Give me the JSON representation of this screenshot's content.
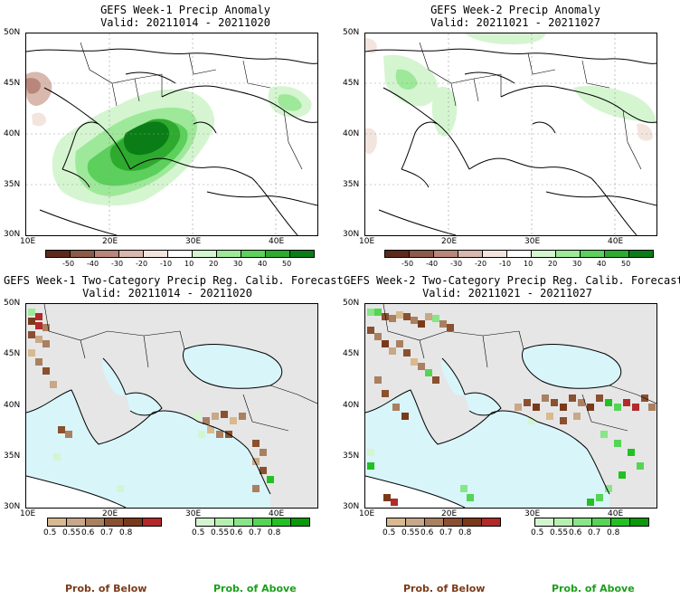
{
  "panels": [
    {
      "id": "p1",
      "title": "GEFS Week-1 Precip Anomaly",
      "valid": "Valid: 20211014 - 20211020"
    },
    {
      "id": "p2",
      "title": "GEFS Week-2 Precip Anomaly",
      "valid": "Valid: 20211021 - 20211027"
    },
    {
      "id": "p3",
      "title": "GEFS Week-1 Two-Category Precip Reg. Calib. Forecast",
      "valid": "Valid: 20211014 - 20211020"
    },
    {
      "id": "p4",
      "title": "GEFS Week-2 Two-Category Precip Reg. Calib. Forecast",
      "valid": "Valid: 20211021 - 20211027"
    }
  ],
  "axes": {
    "lat_labels": [
      "50N",
      "45N",
      "40N",
      "35N",
      "30N"
    ],
    "lon_labels": [
      "10E",
      "20E",
      "30E",
      "40E"
    ]
  },
  "anomaly_colorbar": {
    "labels": [
      "-50",
      "-40",
      "-30",
      "-20",
      "-10",
      "10",
      "20",
      "30",
      "40",
      "50"
    ],
    "colors": [
      "#5c2a1c",
      "#8b5a48",
      "#b8867a",
      "#d9b8ad",
      "#f3e4de",
      "#ffffff",
      "#d4f5d0",
      "#9ee89a",
      "#5ccf5c",
      "#2eaa2e",
      "#0b7d16"
    ]
  },
  "prob_colorbar": {
    "below_labels": [
      "0.5",
      "0.55",
      "0.6",
      "0.7",
      "0.8"
    ],
    "above_labels": [
      "0.5",
      "0.55",
      "0.6",
      "0.7",
      "0.8"
    ],
    "below_colors": [
      "#d9b98f",
      "#c8a888",
      "#a98060",
      "#8a5030",
      "#7a3a1a",
      "#b22a2a"
    ],
    "above_colors": [
      "#d4f5d0",
      "#b6f0b0",
      "#88e588",
      "#55d455",
      "#22c022",
      "#099909"
    ]
  },
  "legend": {
    "below": "Prob. of Below",
    "above": "Prob. of Above",
    "below_color": "#7a3a1a",
    "above_color": "#1a9f1a"
  },
  "map_colors": {
    "sea": "#d8f5fa",
    "land_nodata": "#e6e6e6",
    "land": "#ffffff"
  }
}
